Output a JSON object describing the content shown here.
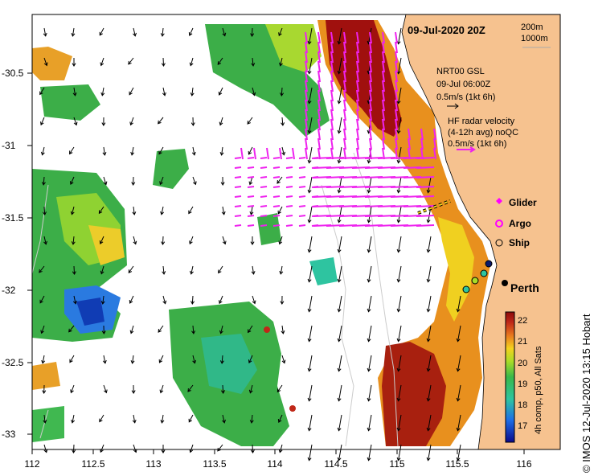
{
  "title": "09-Jul-2020 20Z",
  "depth_legend": [
    "200m",
    "1000m"
  ],
  "model": {
    "line1": "NRT00 GSL",
    "line2": "09-Jul 06:00Z",
    "line3": "0.5m/s (1kt 6h)"
  },
  "radar": {
    "line1": "HF radar velocity",
    "line2": "(4-12h avg) noQC",
    "line3": "0.5m/s (1kt 6h)"
  },
  "legend": [
    "Glider",
    "Argo",
    "Ship"
  ],
  "city": "Perth",
  "lat_ticks": [
    "-30.5",
    "-31",
    "-31.5",
    "-32",
    "-32.5",
    "-33"
  ],
  "lon_ticks": [
    "112",
    "112.5",
    "113",
    "113.5",
    "114",
    "114.5",
    "115",
    "115.5",
    "116"
  ],
  "colorbar": {
    "ticks": [
      "22",
      "21",
      "20",
      "19",
      "18",
      "17"
    ],
    "range": [
      16.5,
      22.5
    ],
    "label": "4h comp, p50, All Sats"
  },
  "credit": "©  IMOS 12-Jul-2020 13:15 Hobart",
  "colors": {
    "land": "#f6c28f",
    "radar": "#ee22ee",
    "glider": "#ff00ff"
  }
}
